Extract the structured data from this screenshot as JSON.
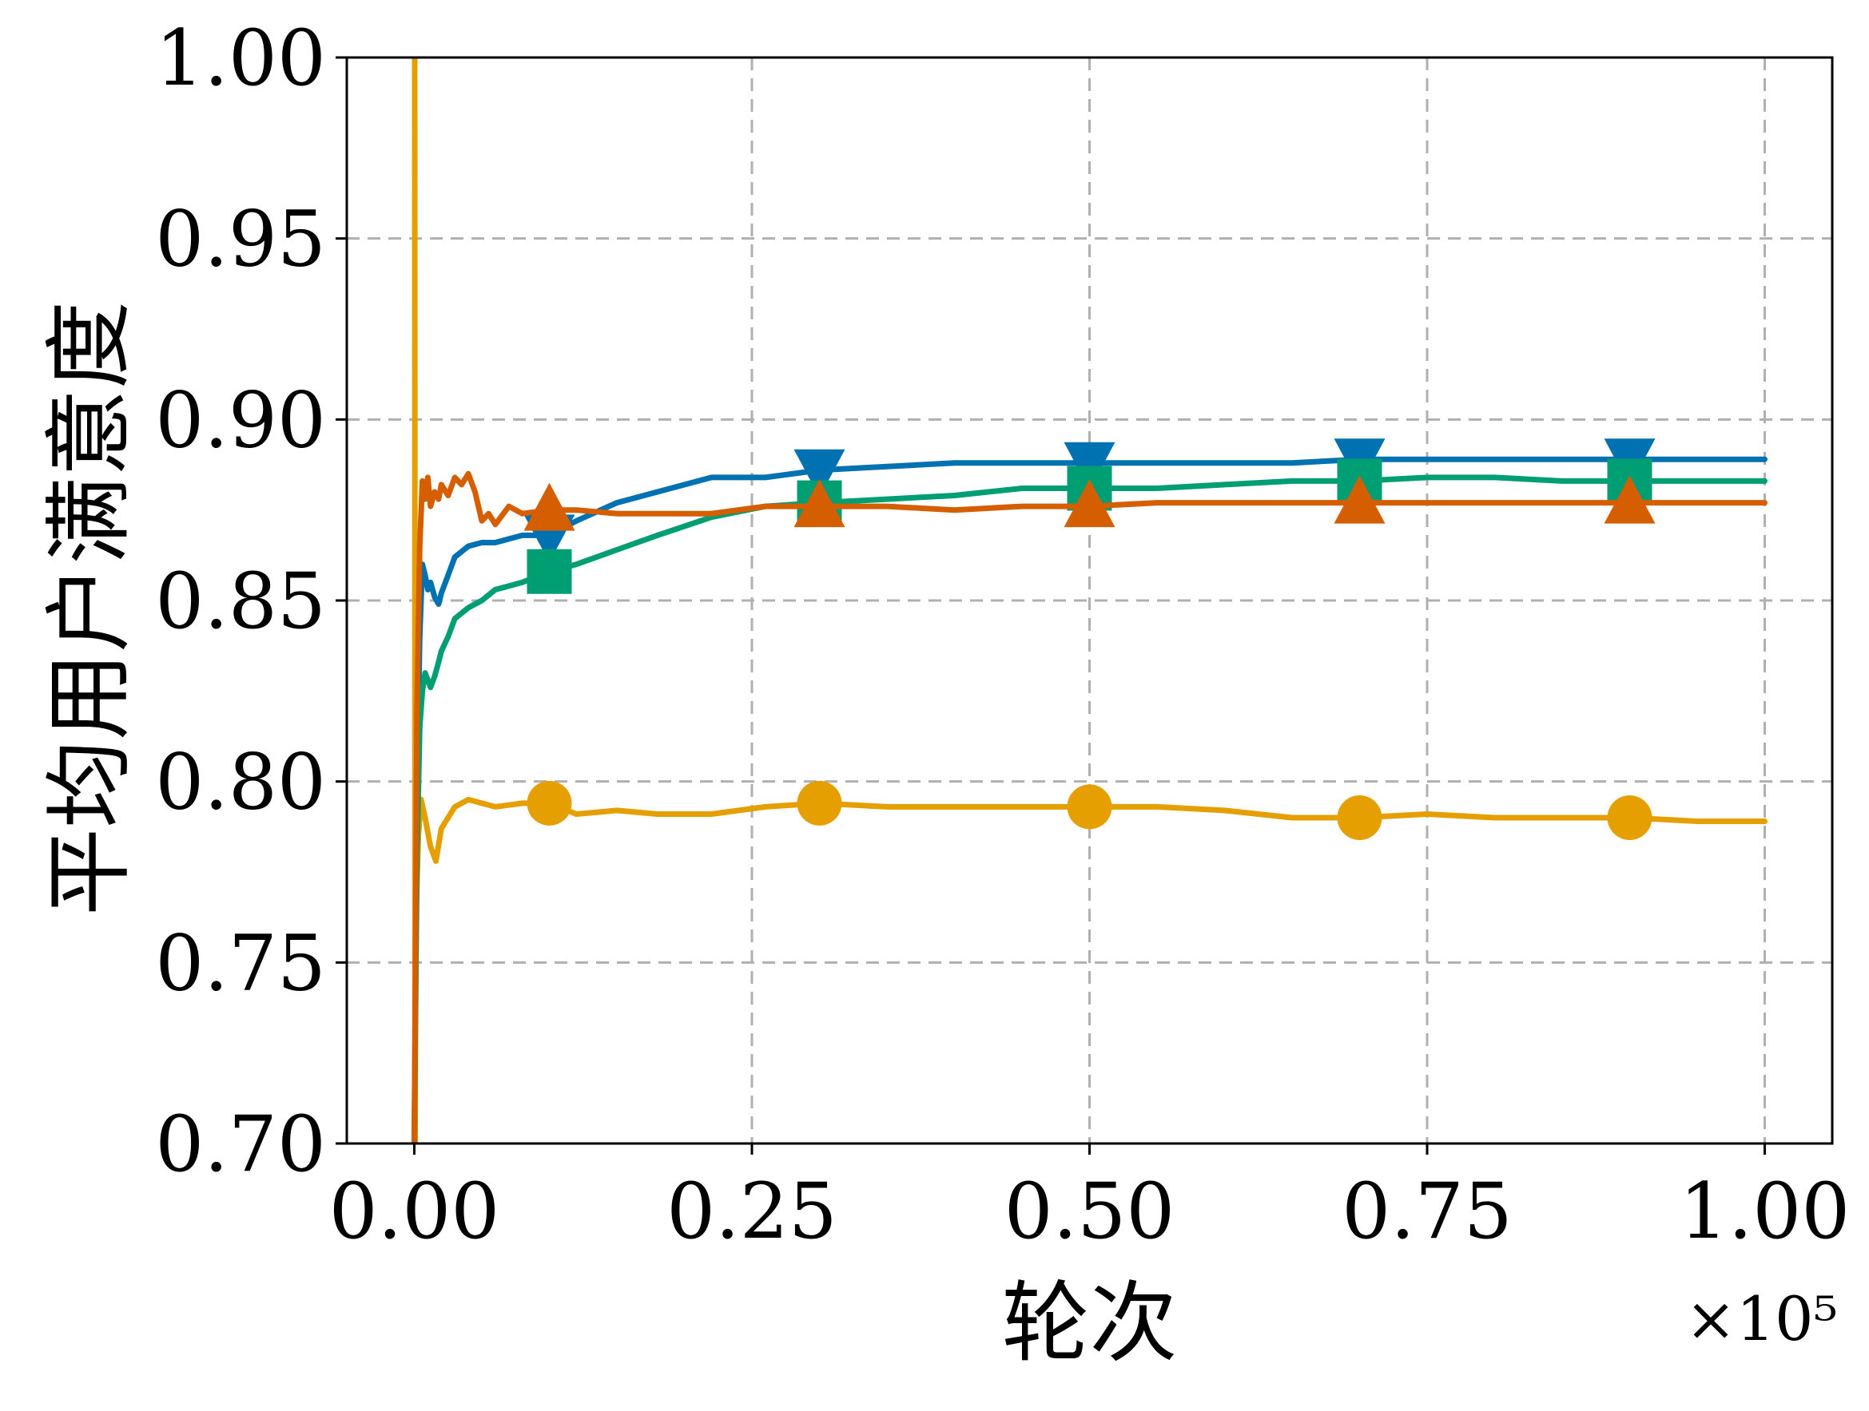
{
  "chart_data": {
    "type": "line",
    "xlabel": "轮次",
    "ylabel": "平均用户满意度",
    "x_offset_label": "×10⁵",
    "xlim": [
      -0.05,
      1.05
    ],
    "ylim": [
      0.7,
      1.0
    ],
    "xticks": [
      0.0,
      0.25,
      0.5,
      0.75,
      1.0
    ],
    "xtick_labels": [
      "0.00",
      "0.25",
      "0.50",
      "0.75",
      "1.00"
    ],
    "yticks": [
      0.7,
      0.75,
      0.8,
      0.85,
      0.9,
      0.95,
      1.0
    ],
    "ytick_labels": [
      "0.70",
      "0.75",
      "0.80",
      "0.85",
      "0.90",
      "0.95",
      "1.00"
    ],
    "grid": true,
    "legend": "none",
    "series": [
      {
        "color": "#e69f00",
        "marker": "circle",
        "x": [
          0.0,
          0.0003,
          0.0006,
          0.001,
          0.003,
          0.005,
          0.008,
          0.012,
          0.016,
          0.02,
          0.03,
          0.04,
          0.05,
          0.06,
          0.08,
          0.1,
          0.12,
          0.15,
          0.18,
          0.22,
          0.26,
          0.3,
          0.35,
          0.4,
          0.45,
          0.5,
          0.55,
          0.6,
          0.65,
          0.7,
          0.75,
          0.8,
          0.85,
          0.9,
          0.95,
          1.0
        ],
        "y": [
          1.0,
          1.0,
          0.7,
          0.76,
          0.785,
          0.795,
          0.79,
          0.782,
          0.778,
          0.787,
          0.793,
          0.795,
          0.794,
          0.793,
          0.794,
          0.794,
          0.791,
          0.792,
          0.791,
          0.791,
          0.793,
          0.794,
          0.793,
          0.793,
          0.793,
          0.793,
          0.793,
          0.792,
          0.79,
          0.79,
          0.791,
          0.79,
          0.79,
          0.79,
          0.789,
          0.789
        ],
        "marker_x": [
          0.1,
          0.3,
          0.5,
          0.7,
          0.9
        ],
        "marker_y": [
          0.794,
          0.794,
          0.793,
          0.79,
          0.79
        ]
      },
      {
        "color": "#0072b2",
        "marker": "triangle-down",
        "x": [
          0.0,
          0.002,
          0.004,
          0.006,
          0.008,
          0.01,
          0.012,
          0.015,
          0.018,
          0.02,
          0.025,
          0.03,
          0.04,
          0.05,
          0.06,
          0.08,
          0.1,
          0.12,
          0.15,
          0.18,
          0.22,
          0.26,
          0.3,
          0.35,
          0.4,
          0.45,
          0.5,
          0.55,
          0.6,
          0.65,
          0.7,
          0.75,
          0.8,
          0.85,
          0.9,
          0.95,
          1.0
        ],
        "y": [
          0.7,
          0.8,
          0.84,
          0.86,
          0.857,
          0.853,
          0.855,
          0.851,
          0.849,
          0.852,
          0.857,
          0.862,
          0.865,
          0.866,
          0.866,
          0.868,
          0.868,
          0.872,
          0.877,
          0.88,
          0.884,
          0.884,
          0.886,
          0.887,
          0.888,
          0.888,
          0.888,
          0.888,
          0.888,
          0.888,
          0.889,
          0.889,
          0.889,
          0.889,
          0.889,
          0.889,
          0.889
        ],
        "marker_x": [
          0.1,
          0.3,
          0.5,
          0.7,
          0.9
        ],
        "marker_y": [
          0.868,
          0.886,
          0.888,
          0.889,
          0.889
        ]
      },
      {
        "color": "#009e73",
        "marker": "square",
        "x": [
          0.0,
          0.002,
          0.004,
          0.006,
          0.008,
          0.01,
          0.012,
          0.015,
          0.018,
          0.02,
          0.025,
          0.03,
          0.04,
          0.05,
          0.06,
          0.08,
          0.1,
          0.12,
          0.15,
          0.18,
          0.22,
          0.26,
          0.3,
          0.35,
          0.4,
          0.45,
          0.5,
          0.55,
          0.6,
          0.65,
          0.7,
          0.75,
          0.8,
          0.85,
          0.9,
          0.95,
          1.0
        ],
        "y": [
          0.7,
          0.78,
          0.815,
          0.825,
          0.83,
          0.828,
          0.826,
          0.829,
          0.833,
          0.836,
          0.84,
          0.845,
          0.848,
          0.85,
          0.853,
          0.855,
          0.858,
          0.86,
          0.864,
          0.868,
          0.873,
          0.876,
          0.877,
          0.878,
          0.879,
          0.881,
          0.881,
          0.881,
          0.882,
          0.883,
          0.883,
          0.884,
          0.884,
          0.883,
          0.883,
          0.883,
          0.883
        ],
        "marker_x": [
          0.1,
          0.3,
          0.5,
          0.7,
          0.9
        ],
        "marker_y": [
          0.858,
          0.877,
          0.881,
          0.883,
          0.883
        ]
      },
      {
        "color": "#d55e00",
        "marker": "triangle-up",
        "x": [
          0.0,
          0.002,
          0.004,
          0.006,
          0.008,
          0.01,
          0.012,
          0.015,
          0.018,
          0.02,
          0.025,
          0.03,
          0.035,
          0.04,
          0.045,
          0.05,
          0.055,
          0.06,
          0.07,
          0.08,
          0.1,
          0.12,
          0.15,
          0.18,
          0.22,
          0.26,
          0.3,
          0.35,
          0.4,
          0.45,
          0.5,
          0.55,
          0.6,
          0.65,
          0.7,
          0.75,
          0.8,
          0.85,
          0.9,
          0.95,
          1.0
        ],
        "y": [
          0.7,
          0.82,
          0.865,
          0.883,
          0.878,
          0.884,
          0.876,
          0.88,
          0.878,
          0.882,
          0.879,
          0.884,
          0.882,
          0.885,
          0.88,
          0.872,
          0.874,
          0.871,
          0.876,
          0.874,
          0.875,
          0.875,
          0.874,
          0.874,
          0.874,
          0.876,
          0.876,
          0.876,
          0.875,
          0.876,
          0.876,
          0.877,
          0.877,
          0.877,
          0.877,
          0.877,
          0.877,
          0.877,
          0.877,
          0.877,
          0.877
        ],
        "marker_x": [
          0.1,
          0.3,
          0.5,
          0.7,
          0.9
        ],
        "marker_y": [
          0.875,
          0.876,
          0.876,
          0.877,
          0.877
        ]
      }
    ]
  }
}
